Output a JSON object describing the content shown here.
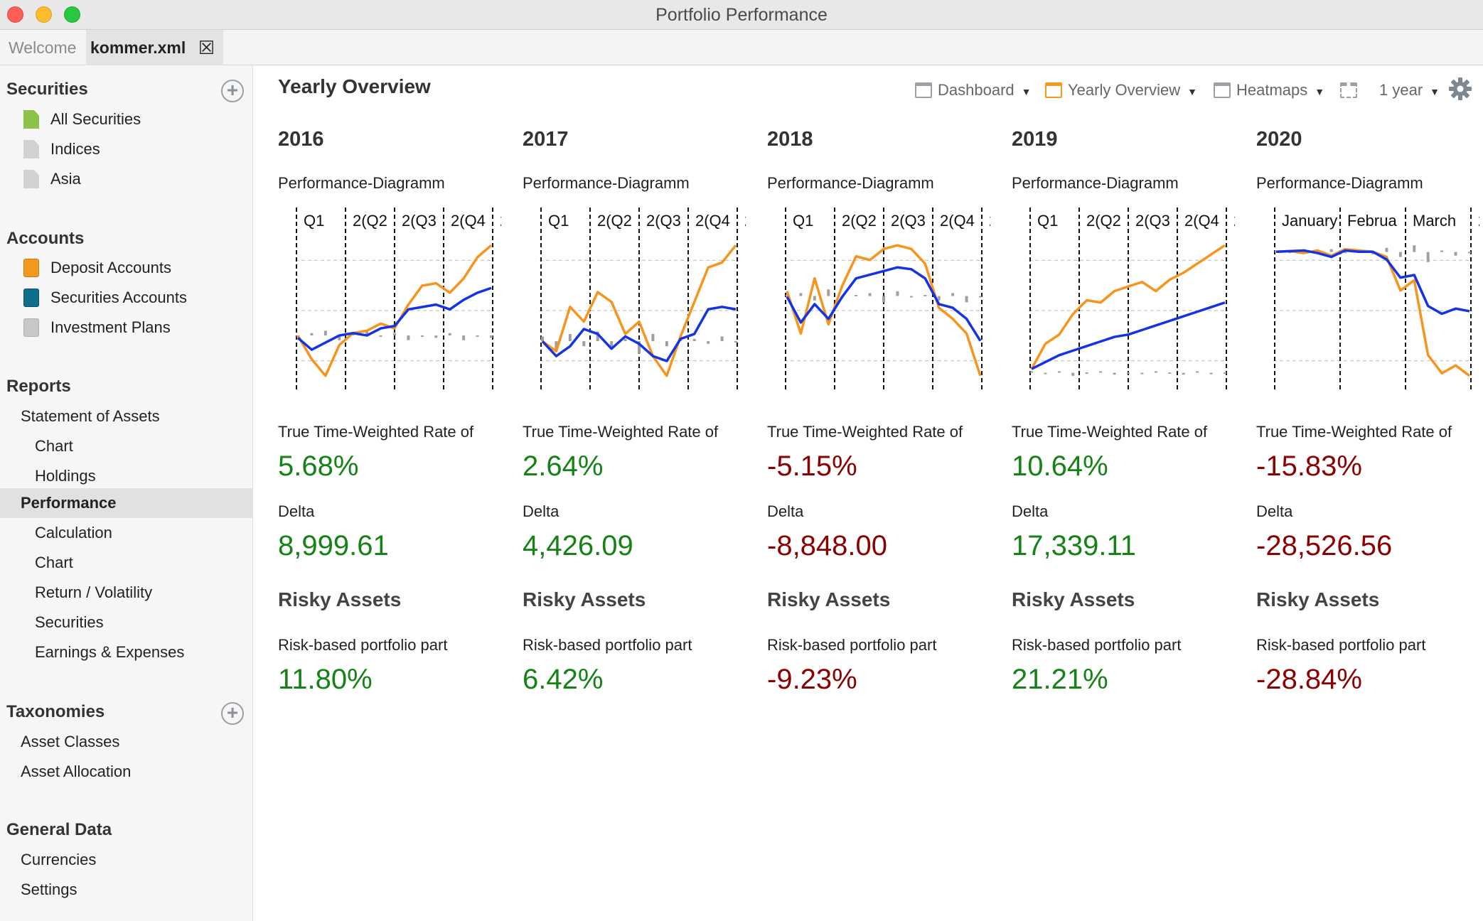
{
  "window": {
    "title": "Portfolio Performance"
  },
  "tabs": {
    "welcome": "Welcome",
    "active": "kommer.xml",
    "close_glyph": "☒"
  },
  "sidebar": {
    "securities": {
      "title": "Securities",
      "items": [
        "All Securities",
        "Indices",
        "Asia"
      ]
    },
    "accounts": {
      "title": "Accounts",
      "items": [
        "Deposit Accounts",
        "Securities Accounts",
        "Investment Plans"
      ]
    },
    "reports": {
      "title": "Reports",
      "statement": "Statement of Assets",
      "statement_children": [
        "Chart",
        "Holdings"
      ],
      "performance": "Performance",
      "performance_children": [
        "Calculation",
        "Chart",
        "Return / Volatility",
        "Securities",
        "Earnings & Expenses"
      ]
    },
    "taxonomies": {
      "title": "Taxonomies",
      "items": [
        "Asset Classes",
        "Asset Allocation"
      ]
    },
    "general": {
      "title": "General Data",
      "items": [
        "Currencies",
        "Settings"
      ]
    }
  },
  "main": {
    "title": "Yearly Overview",
    "toolbar": {
      "dashboard": "Dashboard",
      "yearly": "Yearly Overview",
      "heatmaps": "Heatmaps",
      "period": "1 year"
    },
    "labels": {
      "diagram": "Performance-Diagramm",
      "ttwror": "True Time-Weighted Rate of",
      "delta": "Delta",
      "risky": "Risky Assets",
      "risk_part": "Risk-based portfolio part"
    },
    "years": [
      {
        "year": "2016",
        "ttwror": "5.68%",
        "delta": "8,999.61",
        "risk": "11.80%",
        "sign": "pos"
      },
      {
        "year": "2017",
        "ttwror": "2.64%",
        "delta": "4,426.09",
        "risk": "6.42%",
        "sign": "pos"
      },
      {
        "year": "2018",
        "ttwror": "-5.15%",
        "delta": "-8,848.00",
        "risk": "-9.23%",
        "sign": "neg"
      },
      {
        "year": "2019",
        "ttwror": "10.64%",
        "delta": "17,339.11",
        "risk": "21.21%",
        "sign": "pos"
      },
      {
        "year": "2020",
        "ttwror": "-15.83%",
        "delta": "-28,526.56",
        "risk": "-28.84%",
        "sign": "neg"
      }
    ]
  },
  "chart_data": [
    {
      "type": "line",
      "axis_labels": [
        "Q1",
        "2(Q2",
        "2(Q3",
        "2(Q4",
        "2("
      ],
      "series": [
        {
          "color": "#f7941d",
          "values": [
            0.1,
            -0.9,
            -1.6,
            -0.3,
            0.2,
            0.3,
            0.6,
            0.4,
            1.4,
            2.2,
            2.3,
            1.9,
            2.5,
            3.4,
            3.9
          ]
        },
        {
          "color": "#1432e6",
          "values": [
            0,
            -0.5,
            -0.2,
            0.1,
            0.2,
            0.1,
            0.4,
            0.5,
            1.2,
            1.3,
            1.4,
            1.2,
            1.6,
            1.9,
            2.1
          ]
        },
        {
          "color": "#a0a0a0",
          "values": [
            0.1,
            0.2,
            0.3,
            -0.1,
            0.2,
            0.3,
            0.1,
            0.2,
            -0.1,
            0.1,
            0,
            0.2,
            -0.1,
            0.1,
            0
          ]
        }
      ]
    },
    {
      "type": "line",
      "axis_labels": [
        "Q1",
        "2(Q2",
        "2(Q3",
        "2(Q4",
        "2("
      ],
      "series": [
        {
          "color": "#f7941d",
          "values": [
            0,
            -0.4,
            1.4,
            0.8,
            2.0,
            1.6,
            0.3,
            0.8,
            -0.6,
            -1.4,
            0.2,
            1.6,
            3.0,
            3.2,
            3.9
          ]
        },
        {
          "color": "#1432e6",
          "values": [
            0,
            -0.6,
            -0.2,
            0.5,
            0.3,
            -0.3,
            0.2,
            -0.1,
            -0.6,
            -0.8,
            0.1,
            0.3,
            1.3,
            1.4,
            1.3
          ]
        },
        {
          "color": "#a0a0a0",
          "values": [
            0.2,
            -0.4,
            0.3,
            -0.2,
            0.4,
            -0.3,
            0.1,
            -0.5,
            0.3,
            -0.2,
            0.2,
            0.1,
            -0.1,
            0.2,
            0
          ]
        }
      ]
    },
    {
      "type": "line",
      "axis_labels": [
        "Q1",
        "2(Q2",
        "2(Q3",
        "2(Q4",
        "2("
      ],
      "series": [
        {
          "color": "#f7941d",
          "values": [
            0.3,
            -2.0,
            1.0,
            -1.5,
            0.6,
            2.2,
            2.0,
            2.6,
            2.8,
            2.6,
            1.8,
            -0.6,
            -1.2,
            -2.0,
            -4.3
          ]
        },
        {
          "color": "#1432e6",
          "values": [
            0,
            -1.4,
            -0.4,
            -1.2,
            0,
            1.0,
            1.2,
            1.4,
            1.6,
            1.5,
            1.0,
            -0.4,
            -0.6,
            -1.2,
            -2.4
          ]
        },
        {
          "color": "#a0a0a0",
          "values": [
            0.1,
            0.2,
            -0.2,
            0.4,
            0,
            0.1,
            0.2,
            -0.3,
            0.3,
            0,
            0.1,
            -0.2,
            0.2,
            -0.3,
            0
          ]
        }
      ]
    },
    {
      "type": "line",
      "axis_labels": [
        "Q1",
        "2(Q2",
        "2(Q3",
        "2(Q4",
        "2("
      ],
      "series": [
        {
          "color": "#f7941d",
          "values": [
            -6.0,
            -3.8,
            -3.0,
            -1.2,
            0,
            -0.2,
            0.8,
            1.2,
            1.6,
            0.8,
            1.8,
            2.4,
            3.2,
            4.0,
            4.8
          ]
        },
        {
          "color": "#1432e6",
          "values": [
            -6.0,
            -5.4,
            -4.8,
            -4.4,
            -4.0,
            -3.6,
            -3.2,
            -3.0,
            -2.6,
            -2.2,
            -1.8,
            -1.4,
            -1.0,
            -0.6,
            -0.2
          ]
        },
        {
          "color": "#a0a0a0",
          "values": [
            -6.2,
            -6.4,
            -6.2,
            -6.6,
            -6.3,
            -6.2,
            -6.5,
            -6.3,
            -6.4,
            -6.2,
            -6.3,
            -6.5,
            -6.2,
            -6.4,
            -6.3
          ]
        }
      ]
    },
    {
      "type": "line",
      "axis_labels": [
        "January",
        "Februa",
        "March",
        "2"
      ],
      "series": [
        {
          "color": "#f7941d",
          "values": [
            0,
            0.05,
            -0.1,
            0.1,
            -0.3,
            0.2,
            0.1,
            0,
            -0.4,
            -3.0,
            -2.2,
            -8.0,
            -9.4,
            -8.8,
            -9.6
          ]
        },
        {
          "color": "#1432e6",
          "values": [
            0,
            0.05,
            0.1,
            -0.1,
            -0.4,
            0.1,
            0,
            0,
            -0.6,
            -2.0,
            -1.8,
            -4.2,
            -4.8,
            -4.4,
            -4.6
          ]
        },
        {
          "color": "#a0a0a0",
          "values": [
            0.1,
            0,
            0.2,
            -0.1,
            0.2,
            0,
            0.1,
            -0.2,
            0.3,
            -0.4,
            0.5,
            -0.8,
            0.1,
            -0.3,
            0
          ]
        }
      ]
    }
  ]
}
